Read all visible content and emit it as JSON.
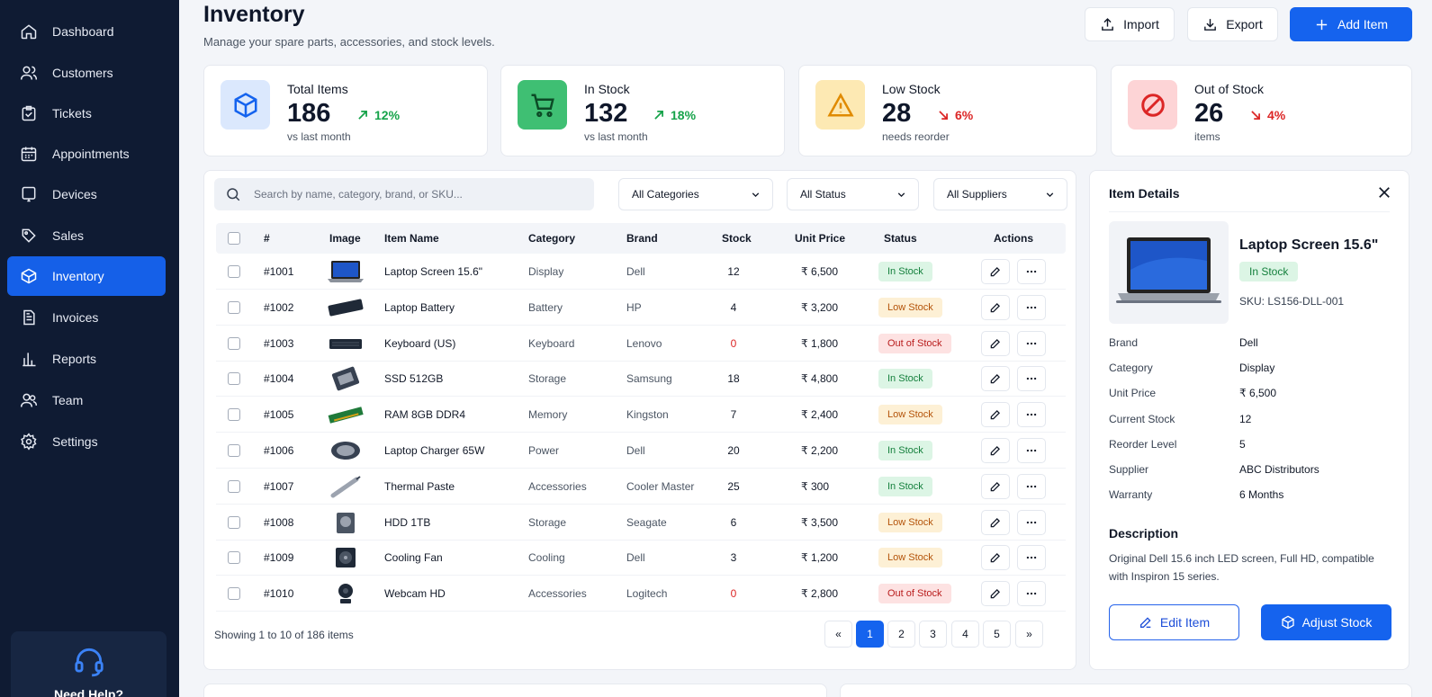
{
  "sidebar": {
    "items": [
      {
        "label": "Dashboard",
        "icon": "home-icon"
      },
      {
        "label": "Customers",
        "icon": "users-icon"
      },
      {
        "label": "Tickets",
        "icon": "clipboard-icon"
      },
      {
        "label": "Appointments",
        "icon": "calendar-icon"
      },
      {
        "label": "Devices",
        "icon": "tablet-icon"
      },
      {
        "label": "Sales",
        "icon": "tag-icon"
      },
      {
        "label": "Inventory",
        "icon": "box-icon",
        "active": true
      },
      {
        "label": "Invoices",
        "icon": "document-icon"
      },
      {
        "label": "Reports",
        "icon": "bar-chart-icon"
      },
      {
        "label": "Team",
        "icon": "team-icon"
      },
      {
        "label": "Settings",
        "icon": "gear-icon"
      }
    ],
    "help_label": "Need Help?"
  },
  "header": {
    "title": "Inventory",
    "subtitle": "Manage your spare parts, accessories, and stock levels.",
    "import_label": "Import",
    "export_label": "Export",
    "add_label": "Add Item"
  },
  "stats": [
    {
      "label": "Total Items",
      "value": "186",
      "change": "12%",
      "trend": "up",
      "note": "vs last month",
      "color": "#1563ee"
    },
    {
      "label": "In Stock",
      "value": "132",
      "change": "18%",
      "trend": "up",
      "note": "vs last month",
      "color": "#16a34a"
    },
    {
      "label": "Low Stock",
      "value": "28",
      "change": "6%",
      "trend": "down",
      "note": "needs reorder",
      "color": "#f59e0b"
    },
    {
      "label": "Out of Stock",
      "value": "26",
      "change": "4%",
      "trend": "down",
      "note": "items",
      "color": "#dc2626"
    }
  ],
  "filters": {
    "search_placeholder": "Search by name, category, brand, or SKU...",
    "category": "All Categories",
    "status": "All Status",
    "supplier": "All Suppliers"
  },
  "table": {
    "columns": [
      "#",
      "Image",
      "Item Name",
      "Category",
      "Brand",
      "Stock",
      "Unit Price",
      "Status",
      "Actions"
    ],
    "rows": [
      {
        "id": "#1001",
        "name": "Laptop Screen 15.6\"",
        "category": "Display",
        "brand": "Dell",
        "stock": "12",
        "price": "₹ 6,500",
        "status": "In Stock",
        "kind": "in",
        "img": "laptop"
      },
      {
        "id": "#1002",
        "name": "Laptop Battery",
        "category": "Battery",
        "brand": "HP",
        "stock": "4",
        "price": "₹ 3,200",
        "status": "Low Stock",
        "kind": "low",
        "img": "battery"
      },
      {
        "id": "#1003",
        "name": "Keyboard (US)",
        "category": "Keyboard",
        "brand": "Lenovo",
        "stock": "0",
        "price": "₹ 1,800",
        "status": "Out of Stock",
        "kind": "out",
        "img": "keyboard"
      },
      {
        "id": "#1004",
        "name": "SSD 512GB",
        "category": "Storage",
        "brand": "Samsung",
        "stock": "18",
        "price": "₹ 4,800",
        "status": "In Stock",
        "kind": "in",
        "img": "ssd"
      },
      {
        "id": "#1005",
        "name": "RAM 8GB DDR4",
        "category": "Memory",
        "brand": "Kingston",
        "stock": "7",
        "price": "₹ 2,400",
        "status": "Low Stock",
        "kind": "low",
        "img": "ram"
      },
      {
        "id": "#1006",
        "name": "Laptop Charger 65W",
        "category": "Power",
        "brand": "Dell",
        "stock": "20",
        "price": "₹ 2,200",
        "status": "In Stock",
        "kind": "in",
        "img": "charger"
      },
      {
        "id": "#1007",
        "name": "Thermal Paste",
        "category": "Accessories",
        "brand": "Cooler Master",
        "stock": "25",
        "price": "₹ 300",
        "status": "In Stock",
        "kind": "in",
        "img": "paste"
      },
      {
        "id": "#1008",
        "name": "HDD 1TB",
        "category": "Storage",
        "brand": "Seagate",
        "stock": "6",
        "price": "₹ 3,500",
        "status": "Low Stock",
        "kind": "low",
        "img": "hdd"
      },
      {
        "id": "#1009",
        "name": "Cooling Fan",
        "category": "Cooling",
        "brand": "Dell",
        "stock": "3",
        "price": "₹ 1,200",
        "status": "Low Stock",
        "kind": "low",
        "img": "fan"
      },
      {
        "id": "#1010",
        "name": "Webcam HD",
        "category": "Accessories",
        "brand": "Logitech",
        "stock": "0",
        "price": "₹ 2,800",
        "status": "Out of Stock",
        "kind": "out",
        "img": "webcam"
      }
    ],
    "showing": "Showing 1 to 10 of 186 items",
    "pages": [
      "«",
      "1",
      "2",
      "3",
      "4",
      "5",
      "»"
    ],
    "current_page": "1"
  },
  "details": {
    "title": "Item Details",
    "name": "Laptop Screen 15.6\"",
    "status": "In Stock",
    "sku": "SKU: LS156-DLL-001",
    "fields": [
      {
        "key": "Brand",
        "value": "Dell"
      },
      {
        "key": "Category",
        "value": "Display"
      },
      {
        "key": "Unit Price",
        "value": "₹ 6,500"
      },
      {
        "key": "Current Stock",
        "value": "12"
      },
      {
        "key": "Reorder Level",
        "value": "5"
      },
      {
        "key": "Supplier",
        "value": "ABC Distributors"
      },
      {
        "key": "Warranty",
        "value": "6 Months"
      }
    ],
    "description_title": "Description",
    "description": "Original Dell 15.6 inch LED screen, Full HD, compatible with Inspiron 15 series.",
    "edit_label": "Edit Item",
    "adjust_label": "Adjust Stock"
  }
}
